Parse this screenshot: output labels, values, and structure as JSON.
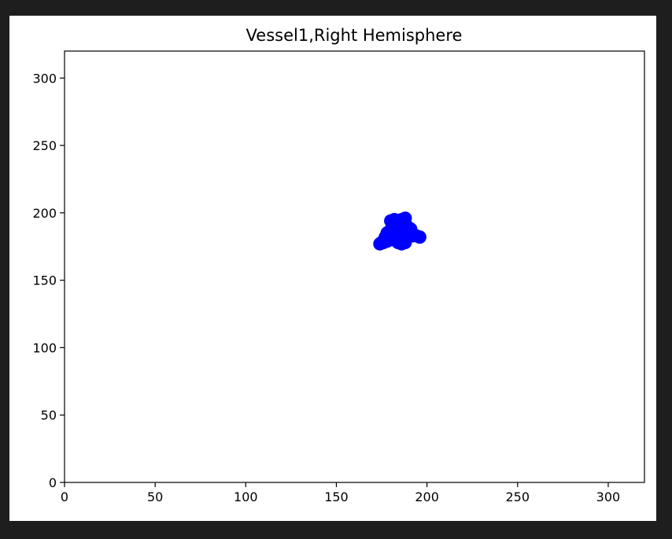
{
  "chart_data": {
    "type": "scatter",
    "title": "Vessel1,Right Hemisphere",
    "xlabel": "",
    "ylabel": "",
    "xlim": [
      0,
      320
    ],
    "ylim": [
      0,
      320
    ],
    "x_ticks": [
      0,
      50,
      100,
      150,
      200,
      250,
      300
    ],
    "y_ticks": [
      0,
      50,
      100,
      150,
      200,
      250,
      300
    ],
    "grid": false,
    "legend": "none",
    "marker_color": "#0000ff",
    "series": [
      {
        "x": [
          174,
          176,
          178,
          180,
          182,
          184,
          186,
          188,
          190,
          192,
          194,
          196,
          180,
          182,
          184,
          186,
          188,
          181,
          183,
          185,
          187,
          189,
          179,
          181,
          183,
          185,
          187,
          189,
          191,
          177,
          175,
          178,
          184,
          186,
          188
        ],
        "y": [
          177,
          178,
          179,
          180,
          181,
          182,
          183,
          183,
          183,
          183,
          183,
          182,
          194,
          195,
          194,
          195,
          196,
          190,
          191,
          192,
          191,
          190,
          186,
          187,
          186,
          185,
          186,
          187,
          188,
          182,
          178,
          185,
          178,
          177,
          178
        ]
      }
    ]
  }
}
